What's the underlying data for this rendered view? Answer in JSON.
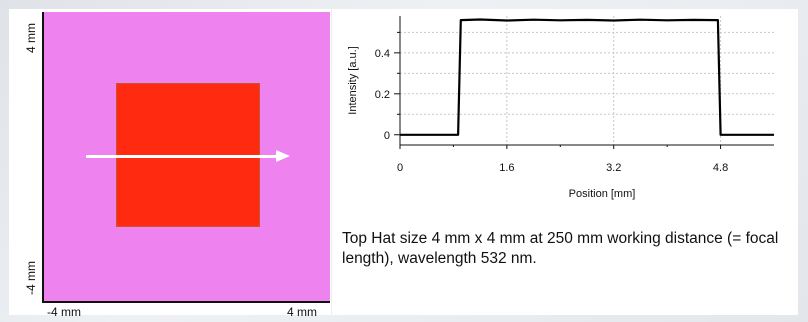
{
  "beam_image": {
    "y_top_label": "4 mm",
    "y_bottom_label": "-4 mm",
    "x_left_label": "-4 mm",
    "x_right_label": "4 mm",
    "background_color": "#ee82ee",
    "tophat_color": "#ff2a10",
    "arrow_color": "#ffffff"
  },
  "chart_data": {
    "type": "line",
    "title": "",
    "xlabel": "Position [mm]",
    "ylabel": "Intensity [a.u.]",
    "xlim": [
      0,
      5.6
    ],
    "ylim": [
      -0.05,
      0.58
    ],
    "xticks": [
      0,
      1.6,
      3.2,
      4.8
    ],
    "xtick_labels": [
      "0",
      "1.6",
      "3.2",
      "4.8"
    ],
    "yticks": [
      0,
      0.2,
      0.4
    ],
    "ytick_labels": [
      "0",
      "0.2",
      "0.4"
    ],
    "grid": true,
    "series": [
      {
        "x": [
          0,
          0.87,
          0.91,
          1.2,
          1.6,
          2.0,
          2.4,
          2.8,
          3.2,
          3.6,
          4.0,
          4.4,
          4.7,
          4.76,
          4.8,
          5.6
        ],
        "y": [
          0,
          0,
          0.56,
          0.563,
          0.558,
          0.562,
          0.559,
          0.561,
          0.558,
          0.562,
          0.559,
          0.561,
          0.56,
          0.56,
          0,
          0
        ]
      }
    ]
  },
  "caption": "Top Hat size 4 mm x 4 mm at 250 mm working distance (= focal length), wavelength 532 nm."
}
